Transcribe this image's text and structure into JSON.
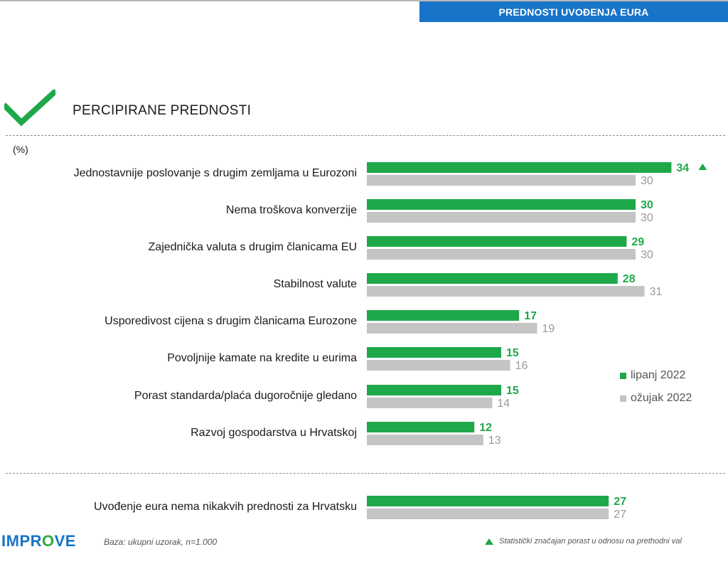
{
  "header": {
    "tag": "PREDNOSTI UVOĐENJA EURA"
  },
  "section": {
    "title": "PERCIPIRANE  PREDNOSTI",
    "unit": "(%)"
  },
  "colors": {
    "green": "#1fa84a",
    "gray": "#c4c4c4",
    "blue": "#1874c8",
    "gray_text": "#999999"
  },
  "chart_data": {
    "type": "bar",
    "orientation": "horizontal",
    "categories": [
      "Jednostavnije poslovanje s drugim zemljama  u Eurozoni",
      "Nema troškova konverzije",
      "Zajednička valuta s drugim članicama EU",
      "Stabilnost valute",
      "Usporedivost cijena s drugim članicama Eurozone",
      "Povoljnije kamate na kredite u eurima",
      "Porast standarda/plaća dugoročnije gledano",
      "Razvoj gospodarstva u Hrvatskoj",
      "Uvođenje eura nema nikakvih prednosti za Hrvatsku"
    ],
    "series": [
      {
        "name": "lipanj 2022",
        "color": "#1fa84a",
        "values": [
          34,
          30,
          29,
          28,
          17,
          15,
          15,
          12,
          27
        ],
        "significant_increase": [
          true,
          false,
          false,
          false,
          false,
          false,
          false,
          false,
          false
        ]
      },
      {
        "name": "ožujak 2022",
        "color": "#c4c4c4",
        "values": [
          30,
          30,
          30,
          31,
          19,
          16,
          14,
          13,
          27
        ]
      }
    ],
    "unit": "(%)",
    "legend_position": "right",
    "grid": false
  },
  "footer": {
    "logo_prefix": "IMPR",
    "logo_o": "O",
    "logo_suffix": "VE",
    "base_note": "Baza: ukupni uzorak, n=1.000",
    "significance_note": "Statistički značajan porast u odnosu na prethodni val"
  }
}
